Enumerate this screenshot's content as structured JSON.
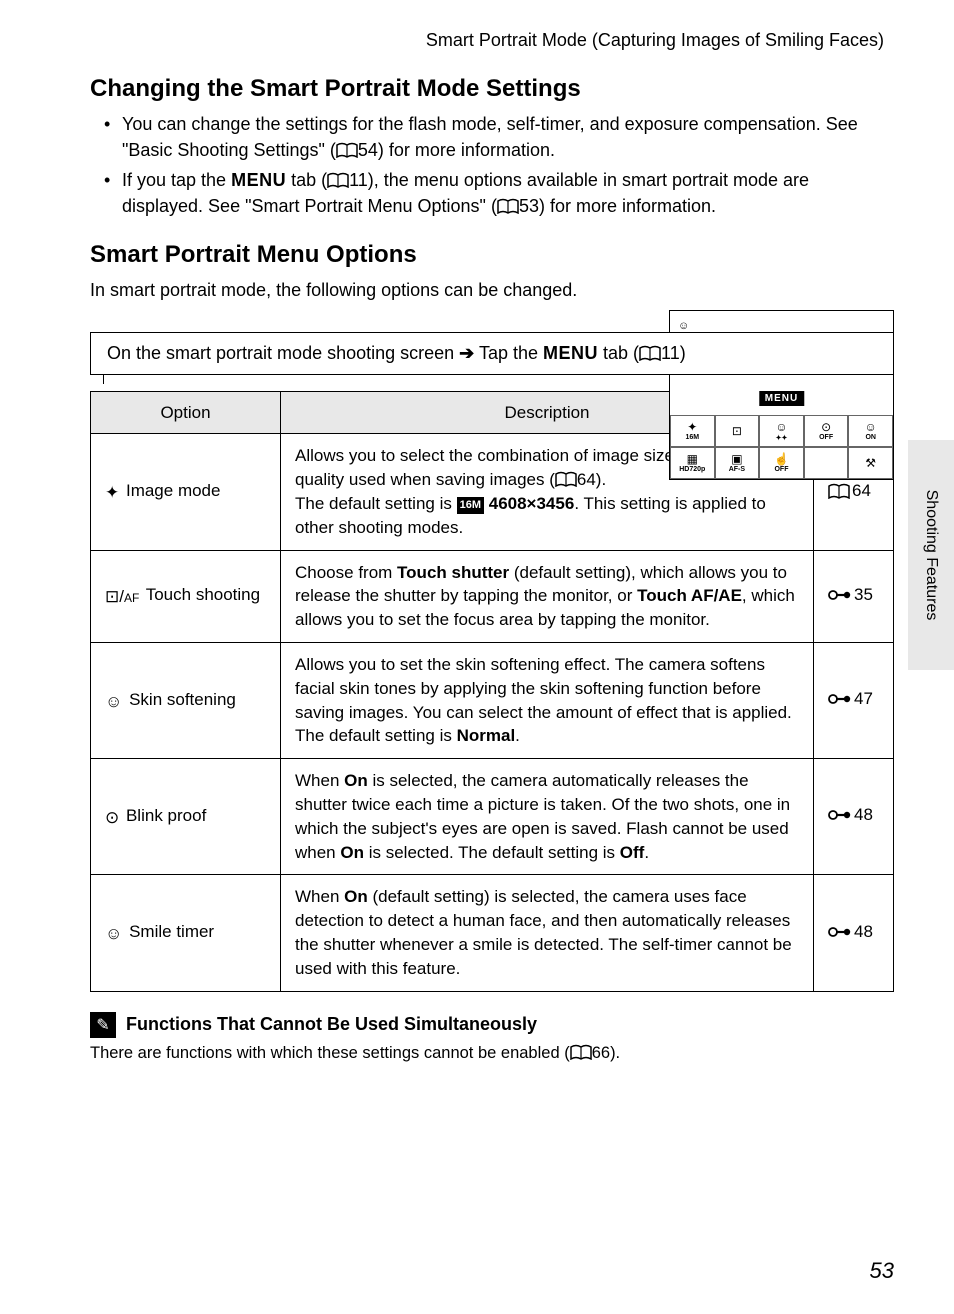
{
  "header": "Smart Portrait Mode (Capturing Images of Smiling Faces)",
  "section1": {
    "title": "Changing the Smart Portrait Mode Settings",
    "bullets": [
      "You can change the settings for the flash mode, self-timer, and exposure compensation. See \"Basic Shooting Settings\" (📖54) for more information.",
      "If you tap the MENU tab (📖11), the menu options available in smart portrait mode are displayed. See \"Smart Portrait Menu Options\" (📖53) for more information."
    ],
    "bullet1_pre": "You can change the settings for the flash mode, self-timer, and exposure compensation. See \"Basic Shooting Settings\" (",
    "bullet1_ref": "54",
    "bullet1_post": ") for more information.",
    "bullet2_pre": "If you tap the ",
    "bullet2_menu": "MENU",
    "bullet2_mid1": " tab (",
    "bullet2_ref1": "11",
    "bullet2_mid2": "), the menu options available in smart portrait mode are displayed. See \"Smart Portrait Menu Options\" (",
    "bullet2_ref2": "53",
    "bullet2_post": ") for more information."
  },
  "section2": {
    "title": "Smart Portrait Menu Options",
    "intro": "In smart portrait mode, the following options can be changed."
  },
  "camera": {
    "menu_label": "MENU",
    "cells": [
      {
        "icon": "✦",
        "label": "16M"
      },
      {
        "icon": "⊡",
        "label": ""
      },
      {
        "icon": "☺",
        "label": "✦✦"
      },
      {
        "icon": "⊙",
        "label": "OFF"
      },
      {
        "icon": "☺",
        "label": "ON"
      },
      {
        "icon": "▦",
        "label": "HD720p"
      },
      {
        "icon": "▣",
        "label": "AF-S"
      },
      {
        "icon": "☝",
        "label": "OFF"
      },
      {
        "icon": "",
        "label": ""
      },
      {
        "icon": "⚒",
        "label": ""
      }
    ]
  },
  "path": {
    "pre": "On the smart portrait mode shooting screen ",
    "arrow": "➔",
    "mid": " Tap the ",
    "menu": "MENU",
    "post_pre": " tab (",
    "ref": "11",
    "post": ")"
  },
  "table": {
    "headers": {
      "option": "Option",
      "description": "Description"
    },
    "rows": [
      {
        "icon": "image-mode",
        "option": " Image mode",
        "desc_pre": "Allows you to select the combination of image size and image quality used when saving images (",
        "desc_ref": "64",
        "desc_mid": ").\nThe default setting is ",
        "desc_bold": "4608×3456",
        "desc_post": ". This setting is applied to other shooting modes.",
        "ref": "64",
        "ref_type": "book"
      },
      {
        "icon": "touch-shooting",
        "option": " Touch shooting",
        "desc_parts": [
          {
            "t": "Choose from "
          },
          {
            "b": "Touch shutter"
          },
          {
            "t": " (default setting), which allows you to release the shutter by tapping the monitor, or "
          },
          {
            "b": "Touch AF/AE"
          },
          {
            "t": ", which allows you to set the focus area by tapping the monitor."
          }
        ],
        "ref": "35",
        "ref_type": "link"
      },
      {
        "icon": "skin-softening",
        "option": " Skin softening",
        "desc_parts": [
          {
            "t": "Allows you to set the skin softening effect. The camera softens facial skin tones by applying the skin softening function before saving images. You can select the amount of effect that is applied. The default setting is "
          },
          {
            "b": "Normal"
          },
          {
            "t": "."
          }
        ],
        "ref": "47",
        "ref_type": "link"
      },
      {
        "icon": "blink-proof",
        "option": " Blink proof",
        "desc_parts": [
          {
            "t": "When "
          },
          {
            "b": "On"
          },
          {
            "t": " is selected, the camera automatically releases the shutter twice each time a picture is taken. Of the two shots, one in which the subject's eyes are open is saved. Flash cannot be used when "
          },
          {
            "b": "On"
          },
          {
            "t": " is selected. The default setting is "
          },
          {
            "b": "Off"
          },
          {
            "t": "."
          }
        ],
        "ref": "48",
        "ref_type": "link"
      },
      {
        "icon": "smile-timer",
        "option": " Smile timer",
        "desc_parts": [
          {
            "t": "When "
          },
          {
            "b": "On"
          },
          {
            "t": " (default setting) is selected, the camera uses face detection to detect a human face, and then automatically releases the shutter whenever a smile is detected. The self-timer cannot be used with this feature."
          }
        ],
        "ref": "48",
        "ref_type": "link"
      }
    ]
  },
  "note": {
    "title": "Functions That Cannot Be Used Simultaneously",
    "body_pre": "There are functions with which these settings cannot be enabled (",
    "body_ref": "66",
    "body_post": ")."
  },
  "side_tab": "Shooting Features",
  "page_number": "53",
  "colors": {
    "text": "#000000",
    "bg": "#ffffff",
    "table_header_bg": "#e8e8e8",
    "side_tab_bg": "#e8e8e8"
  },
  "fonts": {
    "body_size_pt": 13,
    "h2_size_pt": 18,
    "page_num_style": "italic"
  }
}
